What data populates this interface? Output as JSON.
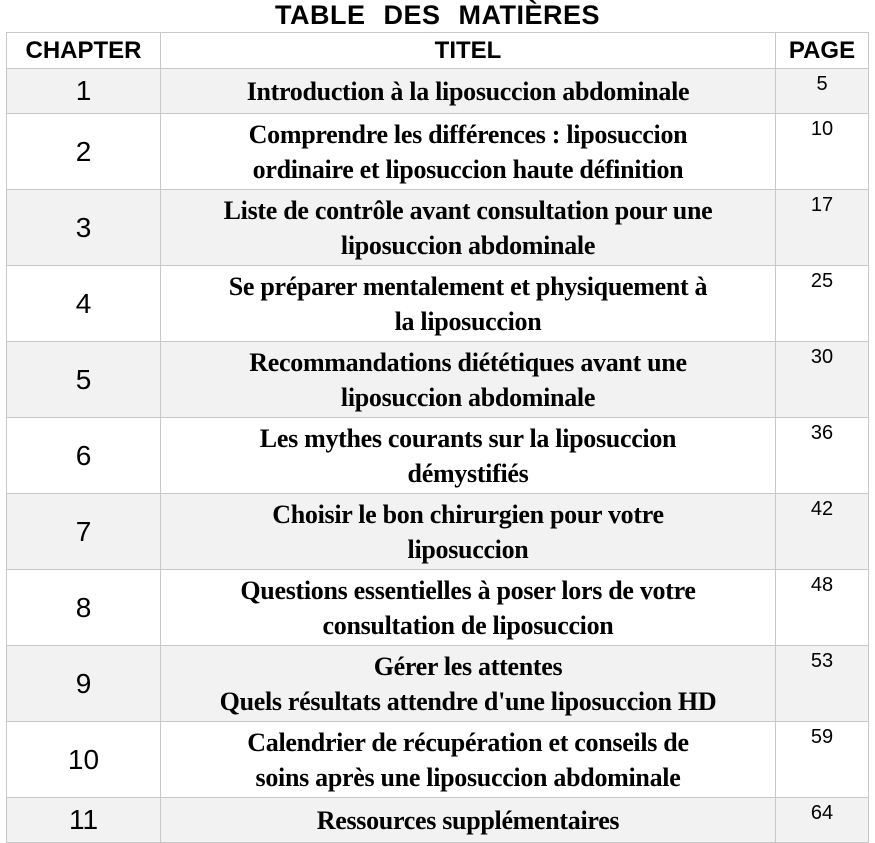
{
  "title": "TABLE   DES   MATIÈRES",
  "headers": {
    "chapter": "CHAPTER",
    "title": "TITEL",
    "page": "PAGE"
  },
  "rows": [
    {
      "chapter": "1",
      "lines": [
        "Introduction à la liposuccion abdominale"
      ],
      "page": "5"
    },
    {
      "chapter": "2",
      "lines": [
        "Comprendre les différences : liposuccion",
        "ordinaire et liposuccion haute définition"
      ],
      "page": "10"
    },
    {
      "chapter": "3",
      "lines": [
        "Liste de contrôle avant consultation pour une",
        "liposuccion abdominale"
      ],
      "page": "17"
    },
    {
      "chapter": "4",
      "lines": [
        "Se préparer mentalement et physiquement à",
        "la liposuccion"
      ],
      "page": "25"
    },
    {
      "chapter": "5",
      "lines": [
        "Recommandations diététiques avant une",
        "liposuccion abdominale"
      ],
      "page": "30"
    },
    {
      "chapter": "6",
      "lines": [
        "Les mythes courants sur la liposuccion",
        "démystifiés"
      ],
      "page": "36"
    },
    {
      "chapter": "7",
      "lines": [
        "Choisir le bon chirurgien pour votre",
        "liposuccion"
      ],
      "page": "42"
    },
    {
      "chapter": "8",
      "lines": [
        "Questions essentielles à poser lors de votre",
        "consultation de liposuccion"
      ],
      "page": "48"
    },
    {
      "chapter": "9",
      "lines": [
        "Gérer les attentes",
        "Quels résultats attendre d'une liposuccion HD"
      ],
      "page": "53"
    },
    {
      "chapter": "10",
      "lines": [
        "Calendrier de récupération et conseils de",
        "soins après une liposuccion abdominale"
      ],
      "page": "59"
    },
    {
      "chapter": "11",
      "lines": [
        "Ressources supplémentaires"
      ],
      "page": "64"
    }
  ]
}
